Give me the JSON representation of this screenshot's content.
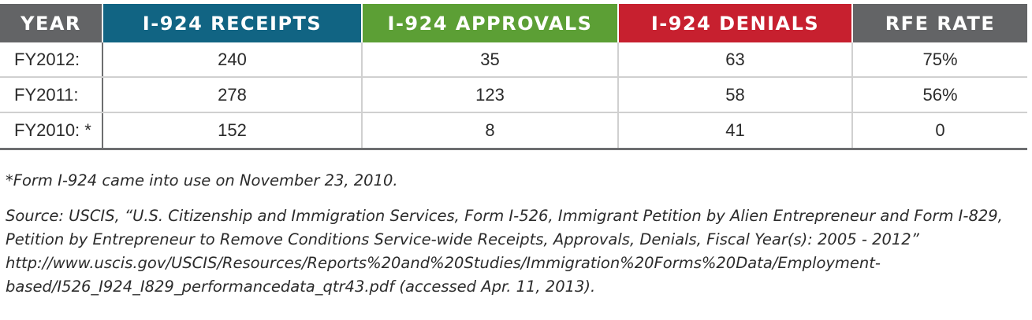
{
  "table": {
    "headers": [
      {
        "label": "YEAR",
        "color": "#636466"
      },
      {
        "label": "I-924 RECEIPTS",
        "color": "#116483"
      },
      {
        "label": "I-924 APPROVALS",
        "color": "#5c9f35"
      },
      {
        "label": "I-924 DENIALS",
        "color": "#c7202f"
      },
      {
        "label": "RFE RATE",
        "color": "#636466"
      }
    ],
    "rows": [
      {
        "year": "FY2012:",
        "receipts": "240",
        "approvals": "35",
        "denials": "63",
        "rfe_rate": "75%"
      },
      {
        "year": "FY2011:",
        "receipts": "278",
        "approvals": "123",
        "denials": "58",
        "rfe_rate": "56%"
      },
      {
        "year": "FY2010: *",
        "receipts": "152",
        "approvals": "8",
        "denials": "41",
        "rfe_rate": "0"
      }
    ]
  },
  "notes": {
    "footnote": "*Form I-924 came into use on November 23, 2010.",
    "source": "Source:  USCIS, “U.S. Citizenship and Immigration Services, Form I-526, Immigrant Petition by Alien Entrepreneur and Form I-829, Petition by Entrepreneur to Remove Conditions Service-wide Receipts, Approvals, Denials, Fiscal Year(s): 2005 - 2012” http://www.uscis.gov/USCIS/Resources/Reports%20and%20Studies/Immigration%20Forms%20Data/Employment-based/I526_I924_I829_performancedata_qtr43.pdf (accessed Apr. 11, 2013)."
  }
}
